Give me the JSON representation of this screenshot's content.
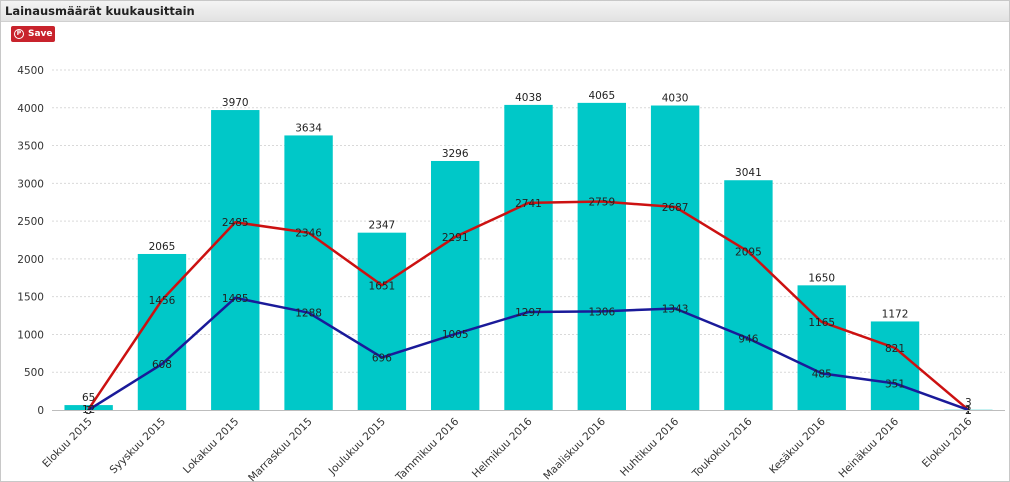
{
  "title": "Lainausmäärät kuukausittain",
  "save": {
    "label": "Save",
    "icon": "pinterest-icon"
  },
  "chart_data": {
    "type": "bar",
    "categories": [
      "Elokuu 2015",
      "Syyskuu 2015",
      "Lokakuu 2015",
      "Marraskuu 2015",
      "Joulukuu 2015",
      "Tammikuu 2016",
      "Helmikuu 2016",
      "Maaliskuu 2016",
      "Huhtikuu 2016",
      "Toukokuu 2016",
      "Kesäkuu 2016",
      "Heinäkuu 2016",
      "Elokuu 2016"
    ],
    "ylim": [
      0,
      4500
    ],
    "yticks": [
      0,
      500,
      1000,
      1500,
      2000,
      2500,
      3000,
      3500,
      4000,
      4500
    ],
    "grid": true,
    "series": [
      {
        "type": "bar",
        "color": "#00c8c8",
        "values": [
          65,
          2065,
          3970,
          3634,
          2347,
          3296,
          4038,
          4065,
          4030,
          3041,
          1650,
          1172,
          3
        ]
      },
      {
        "type": "line",
        "color": "#cc1111",
        "values": [
          12,
          1456,
          2485,
          2346,
          1651,
          2291,
          2741,
          2759,
          2687,
          2095,
          1165,
          821,
          2
        ]
      },
      {
        "type": "line",
        "color": "#1a1a99",
        "values": [
          3,
          608,
          1485,
          1288,
          696,
          1005,
          1297,
          1306,
          1343,
          946,
          485,
          351,
          1
        ]
      }
    ]
  }
}
